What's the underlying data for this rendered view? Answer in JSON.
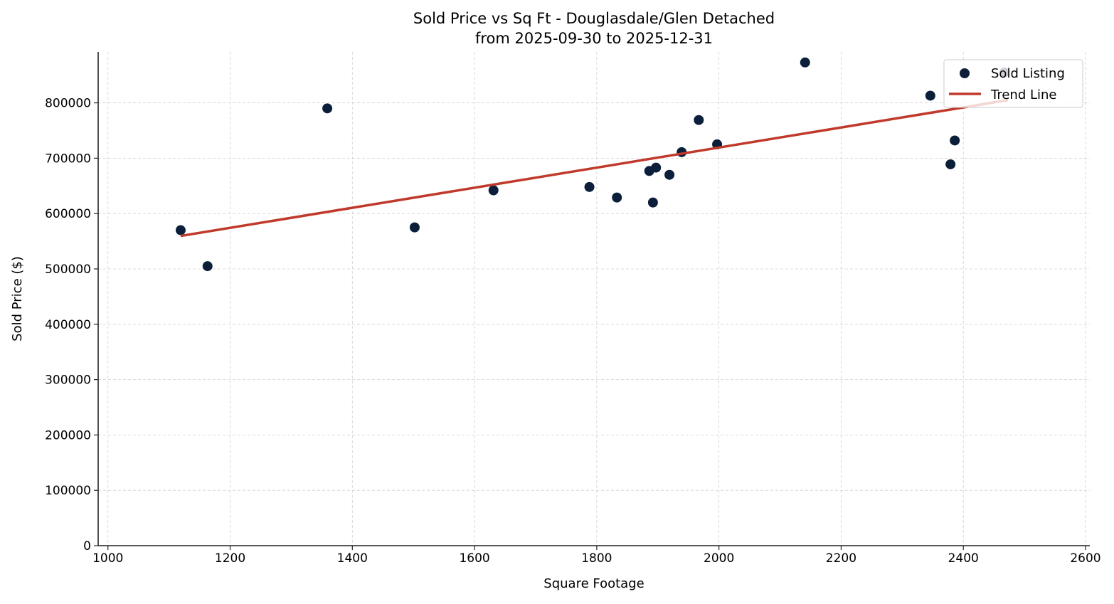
{
  "chart_data": {
    "type": "scatter",
    "title": "Sold Price vs Sq Ft - Douglasdale/Glen Detached",
    "subtitle": "from 2025-09-30 to 2025-12-31",
    "xlabel": "Square Footage",
    "ylabel": "Sold Price ($)",
    "xlim": [
      984,
      2607
    ],
    "ylim": [
      0,
      892000
    ],
    "xticks": [
      1000,
      1200,
      1400,
      1600,
      1800,
      2000,
      2200,
      2400,
      2600
    ],
    "yticks": [
      0,
      100000,
      200000,
      300000,
      400000,
      500000,
      600000,
      700000,
      800000
    ],
    "grid": true,
    "legend_position": "top-right",
    "series": [
      {
        "name": "Sold Listing",
        "kind": "scatter",
        "color": "#0b1f3a",
        "x": [
          1119,
          1163,
          1359,
          1502,
          1631,
          1788,
          1833,
          1886,
          1897,
          1892,
          1919,
          1939,
          1967,
          1997,
          2141,
          2346,
          2379,
          2386,
          2467
        ],
        "y": [
          570000,
          505000,
          790000,
          575000,
          642000,
          648000,
          629000,
          677000,
          683000,
          620000,
          670000,
          711000,
          769000,
          725000,
          873000,
          813000,
          689000,
          732000,
          855000
        ]
      },
      {
        "name": "Trend Line",
        "kind": "line",
        "color": "#c0392b",
        "x": [
          1119,
          2473
        ],
        "y": [
          559500,
          805000
        ]
      }
    ]
  }
}
